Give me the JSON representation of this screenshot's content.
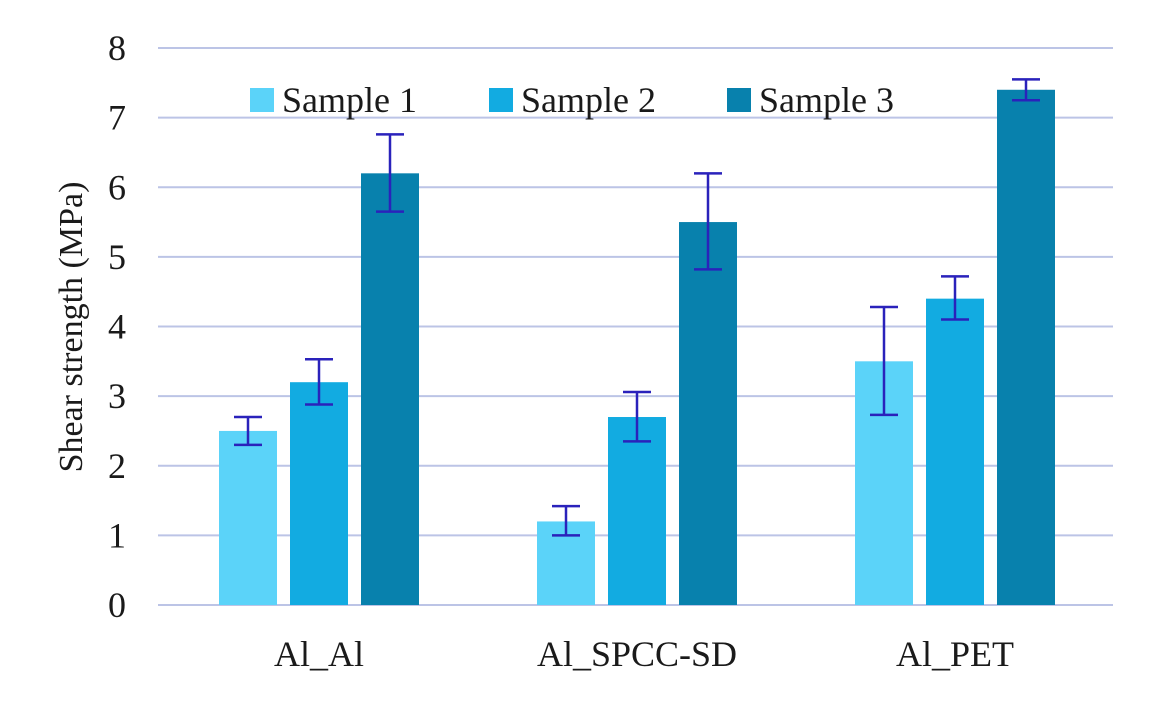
{
  "chart_data": {
    "type": "bar",
    "title": "",
    "xlabel": "",
    "ylabel": "Shear strength (MPa)",
    "ylim": [
      0,
      8
    ],
    "yticks": [
      "0",
      "1",
      "2",
      "3",
      "4",
      "5",
      "6",
      "7",
      "8"
    ],
    "grid": true,
    "legend_position": "top",
    "categories": [
      "Al_Al",
      "Al_SPCC-SD",
      "Al_PET"
    ],
    "series": [
      {
        "name": "Sample 1",
        "color": "#5bd3f9",
        "values": [
          2.5,
          1.2,
          3.5
        ],
        "error": [
          [
            2.3,
            2.7
          ],
          [
            1.0,
            1.42
          ],
          [
            2.73,
            4.28
          ]
        ]
      },
      {
        "name": "Sample 2",
        "color": "#12abe1",
        "values": [
          3.2,
          2.7,
          4.4
        ],
        "error": [
          [
            2.88,
            3.53
          ],
          [
            2.35,
            3.06
          ],
          [
            4.1,
            4.72
          ]
        ]
      },
      {
        "name": "Sample 3",
        "color": "#0881ad",
        "values": [
          6.2,
          5.5,
          7.4
        ],
        "error": [
          [
            5.65,
            6.76
          ],
          [
            4.82,
            6.2
          ],
          [
            7.25,
            7.55
          ]
        ]
      }
    ],
    "error_bar_color": "#2a22bb",
    "grid_color": "#bcc4e6"
  }
}
